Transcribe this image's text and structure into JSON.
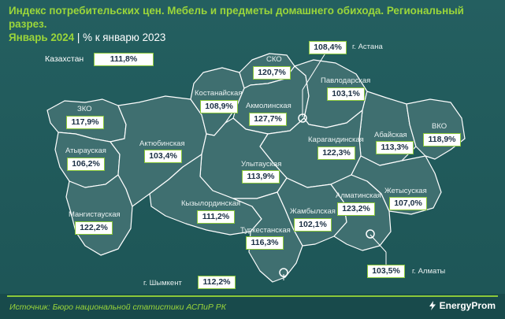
{
  "title": {
    "main": "Индекс потребительских цен. Мебель и предметы домашнего обихода. Региональный разрез.",
    "period": "Январь 2024",
    "separator": "|",
    "unit": "% к январю 2023"
  },
  "country": {
    "label": "Казахстан",
    "value": "111,8%"
  },
  "regions": [
    {
      "name": "ЗКО",
      "value": "117,9%"
    },
    {
      "name": "Атырауская",
      "value": "106,2%"
    },
    {
      "name": "Мангистауская",
      "value": "122,2%"
    },
    {
      "name": "Актюбинская",
      "value": "103,4%"
    },
    {
      "name": "Костанайская",
      "value": "108,9%"
    },
    {
      "name": "СКО",
      "value": "120,7%"
    },
    {
      "name": "Акмолинская",
      "value": "127,7%"
    },
    {
      "name": "Павлодарская",
      "value": "103,1%"
    },
    {
      "name": "Карагандинская",
      "value": "122,3%"
    },
    {
      "name": "Улытауская",
      "value": "113,9%"
    },
    {
      "name": "Кызылординская",
      "value": "111,2%"
    },
    {
      "name": "Туркестанская",
      "value": "116,3%"
    },
    {
      "name": "Жамбылская",
      "value": "102,1%"
    },
    {
      "name": "Алматинская",
      "value": "123,2%"
    },
    {
      "name": "Жетысуская",
      "value": "107,0%"
    },
    {
      "name": "Абайская",
      "value": "113,3%"
    },
    {
      "name": "ВКО",
      "value": "118,9%"
    }
  ],
  "cities": [
    {
      "name": "г. Астана",
      "value": "108,4%"
    },
    {
      "name": "г. Шымкент",
      "value": "112,2%"
    },
    {
      "name": "г. Алматы",
      "value": "103,5%"
    }
  ],
  "footer": {
    "source": "Источник: Бюро национальной статистики АСПиР РК",
    "brand": "EnergyProm"
  },
  "colors": {
    "accent": "#8bc83a",
    "background": "#1f5a5a",
    "region_fill": "#3f6f70"
  }
}
